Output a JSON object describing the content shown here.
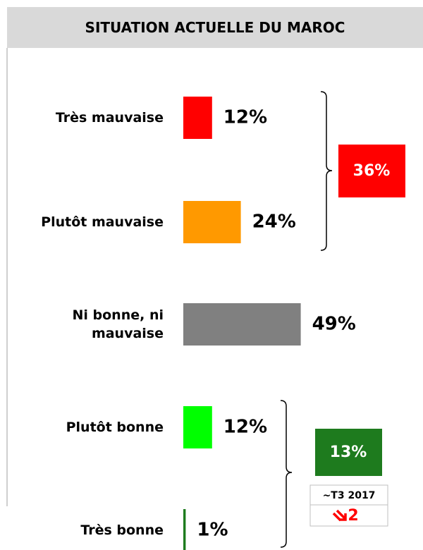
{
  "chart_data": {
    "type": "hbar",
    "title": "SITUATION ACTUELLE DU MAROC",
    "categories": [
      "Très mauvaise",
      "Plutôt mauvaise",
      "Ni bonne, ni mauvaise",
      "Plutôt bonne",
      "Très bonne"
    ],
    "values": [
      12,
      24,
      49,
      12,
      1
    ],
    "value_labels": [
      "12%",
      "24%",
      "49%",
      "12%",
      "1%"
    ],
    "colors": [
      "#ff0000",
      "#ff9900",
      "#808080",
      "#00ff00",
      "#1e7b1e"
    ],
    "groups": [
      {
        "label": "36%",
        "color": "#ff0000"
      },
      {
        "label": "13%",
        "color": "#1e7b1e",
        "comparison": "~T3 2017",
        "change": "2"
      }
    ]
  }
}
